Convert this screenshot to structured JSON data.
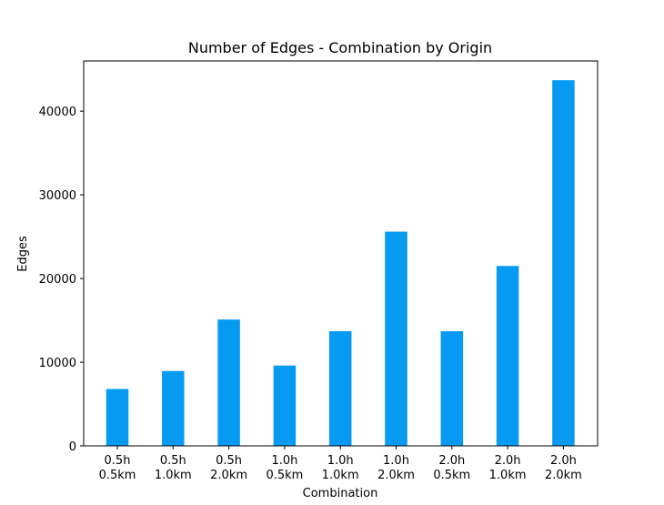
{
  "chart_data": {
    "type": "bar",
    "title": "Number of Edges - Combination by Origin",
    "xlabel": "Combination",
    "ylabel": "Edges",
    "categories": [
      [
        "0.5h",
        "0.5km"
      ],
      [
        "0.5h",
        "1.0km"
      ],
      [
        "0.5h",
        "2.0km"
      ],
      [
        "1.0h",
        "0.5km"
      ],
      [
        "1.0h",
        "1.0km"
      ],
      [
        "1.0h",
        "2.0km"
      ],
      [
        "2.0h",
        "0.5km"
      ],
      [
        "2.0h",
        "1.0km"
      ],
      [
        "2.0h",
        "2.0km"
      ]
    ],
    "values": [
      6800,
      8950,
      15100,
      9600,
      13700,
      25600,
      13700,
      21500,
      43700
    ],
    "ylim": [
      0,
      46000
    ],
    "yticks": [
      0,
      10000,
      20000,
      30000,
      40000
    ],
    "bar_color": "#069af3",
    "grid": false,
    "legend": "none"
  }
}
